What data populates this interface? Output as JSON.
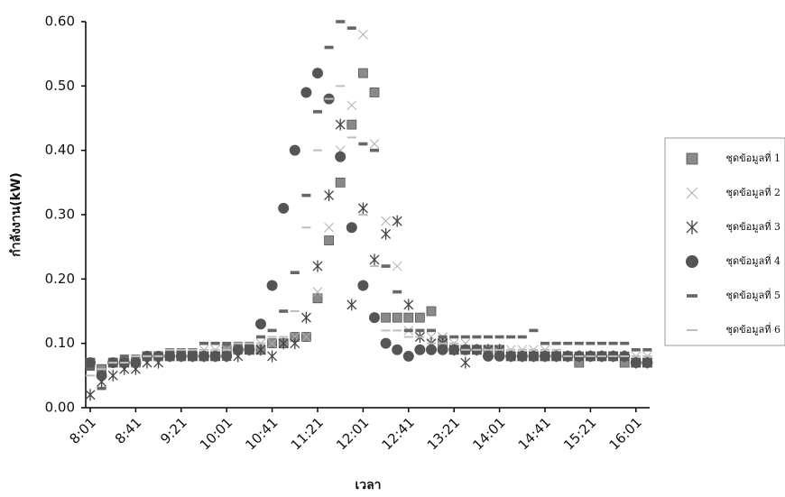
{
  "chart_data": {
    "type": "scatter",
    "x_label": "เวลา",
    "y_label": "กำลังงาน(kW)",
    "categories": [
      "8:01",
      null,
      null,
      null,
      "8:41",
      null,
      null,
      null,
      "9:21",
      null,
      null,
      null,
      "10:01",
      null,
      null,
      null,
      "10:41",
      null,
      null,
      null,
      "11:21",
      null,
      null,
      null,
      "12:01",
      null,
      null,
      null,
      "12:41",
      null,
      null,
      null,
      "13:21",
      null,
      null,
      null,
      "14:01",
      null,
      null,
      null,
      "14:41",
      null,
      null,
      null,
      "15:21",
      null,
      null,
      null,
      "16:01",
      null
    ],
    "ylim": [
      0,
      0.6
    ],
    "yticks": [
      {
        "value": 0,
        "label": "0.00"
      },
      {
        "value": 0.1,
        "label": "0.10"
      },
      {
        "value": 0.2,
        "label": "0.20"
      },
      {
        "value": 0.3,
        "label": "0.30"
      },
      {
        "value": 0.4,
        "label": "0.40"
      },
      {
        "value": 0.5,
        "label": "0.50"
      },
      {
        "value": 0.6,
        "label": "0.60"
      }
    ],
    "legend_position": "right",
    "series": [
      {
        "name": "ชุดข้อมูลที่ 1",
        "color": "#8a8a8a",
        "marker": "square",
        "values": [
          0.07,
          0.06,
          0.07,
          0.07,
          0.07,
          0.08,
          0.08,
          0.08,
          0.08,
          0.08,
          0.08,
          0.08,
          0.09,
          0.09,
          0.09,
          0.09,
          0.1,
          0.1,
          0.11,
          0.11,
          0.17,
          0.26,
          0.35,
          0.44,
          0.52,
          0.49,
          0.14,
          0.14,
          0.14,
          0.14,
          0.15,
          0.1,
          0.09,
          0.09,
          0.09,
          0.09,
          0.09,
          0.08,
          0.08,
          0.08,
          0.08,
          0.08,
          0.08,
          0.07,
          0.08,
          0.08,
          0.08,
          0.07,
          0.07,
          0.07
        ]
      },
      {
        "name": "ชุดข้อมูลที่ 2",
        "color": "#b0b0b0",
        "marker": "x",
        "values": [
          0.02,
          0.04,
          0.05,
          0.06,
          0.07,
          0.07,
          0.08,
          0.08,
          0.08,
          0.08,
          0.09,
          0.09,
          0.09,
          0.09,
          0.09,
          0.1,
          0.1,
          0.1,
          0.11,
          0.11,
          0.18,
          0.28,
          0.4,
          0.47,
          0.58,
          0.41,
          0.29,
          0.22,
          0.12,
          0.11,
          0.11,
          0.11,
          0.1,
          0.1,
          0.09,
          0.09,
          0.09,
          0.09,
          0.09,
          0.09,
          0.09,
          0.08,
          0.08,
          0.08,
          0.08,
          0.08,
          0.08,
          0.08,
          0.08,
          0.08
        ]
      },
      {
        "name": "ชุดข้อมูลที่ 3",
        "color": "#444444",
        "marker": "asterisk",
        "values": [
          0.02,
          0.04,
          0.05,
          0.06,
          0.06,
          0.07,
          0.07,
          0.08,
          0.08,
          0.08,
          0.08,
          0.08,
          0.08,
          0.08,
          0.09,
          0.09,
          0.08,
          0.1,
          0.1,
          0.14,
          0.22,
          0.33,
          0.44,
          0.16,
          0.31,
          0.23,
          0.27,
          0.29,
          0.16,
          0.11,
          0.1,
          0.1,
          0.09,
          0.07,
          0.09,
          0.09,
          0.09,
          0.08,
          0.08,
          0.08,
          0.08,
          0.08,
          0.08,
          0.08,
          0.08,
          0.08,
          0.08,
          0.08,
          0.07,
          0.07
        ]
      },
      {
        "name": "ชุดข้อมูลที่ 4",
        "color": "#555555",
        "marker": "circle",
        "values": [
          0.07,
          0.05,
          0.07,
          0.07,
          0.07,
          0.08,
          0.08,
          0.08,
          0.08,
          0.08,
          0.08,
          0.08,
          0.08,
          0.09,
          0.09,
          0.13,
          0.19,
          0.31,
          0.4,
          0.49,
          0.52,
          0.48,
          0.39,
          0.28,
          0.19,
          0.14,
          0.1,
          0.09,
          0.08,
          0.09,
          0.09,
          0.09,
          0.09,
          0.09,
          0.09,
          0.08,
          0.08,
          0.08,
          0.08,
          0.08,
          0.08,
          0.08,
          0.08,
          0.08,
          0.08,
          0.08,
          0.08,
          0.08,
          0.07,
          0.07
        ]
      },
      {
        "name": "ชุดข้อมูลที่ 5",
        "color": "#666666",
        "marker": "dash",
        "values": [
          0.06,
          0.03,
          0.07,
          0.08,
          0.08,
          0.08,
          0.08,
          0.09,
          0.09,
          0.09,
          0.1,
          0.1,
          0.1,
          0.1,
          0.1,
          0.11,
          0.12,
          0.15,
          0.21,
          0.33,
          0.46,
          0.56,
          0.6,
          0.59,
          0.41,
          0.4,
          0.22,
          0.18,
          0.12,
          0.12,
          0.12,
          0.11,
          0.11,
          0.11,
          0.11,
          0.11,
          0.11,
          0.11,
          0.11,
          0.12,
          0.1,
          0.1,
          0.1,
          0.1,
          0.1,
          0.1,
          0.1,
          0.1,
          0.09,
          0.09
        ]
      },
      {
        "name": "ชุดข้อมูลที่ 6",
        "color": "#bdbdbd",
        "marker": "thin-dash",
        "values": [
          0.05,
          0.06,
          0.07,
          0.07,
          0.08,
          0.08,
          0.08,
          0.09,
          0.09,
          0.09,
          0.09,
          0.09,
          0.09,
          0.1,
          0.1,
          0.1,
          0.11,
          0.11,
          0.15,
          0.28,
          0.4,
          0.48,
          0.5,
          0.42,
          0.3,
          0.22,
          0.12,
          0.12,
          0.11,
          0.11,
          0.1,
          0.1,
          0.1,
          0.09,
          0.09,
          0.09,
          0.09,
          0.09,
          0.09,
          0.09,
          0.09,
          0.09,
          0.08,
          0.08,
          0.08,
          0.08,
          0.08,
          0.08,
          0.08,
          0.08
        ]
      }
    ]
  }
}
